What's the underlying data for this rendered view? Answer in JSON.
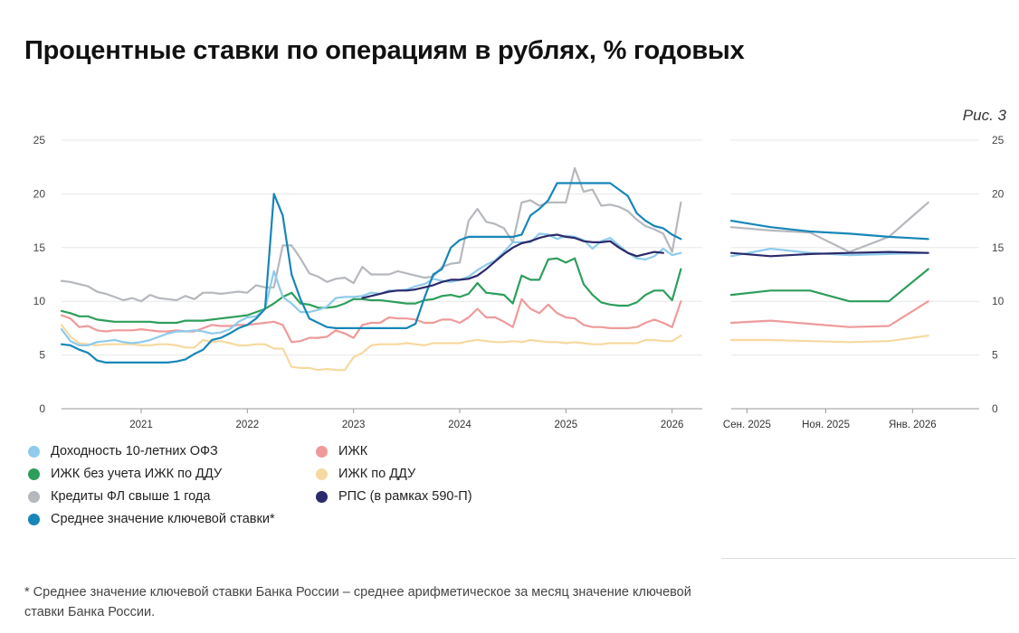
{
  "title": "Процентные ставки по операциям в рублях, % годовых",
  "figure_label": "Рис. 3",
  "footnote": "* Среднее значение ключевой ставки Банка России – среднее арифметическое за месяц значение ключевой ставки Банка России.",
  "legend": [
    {
      "key": "ofz",
      "label": "Доходность 10-летних ОФЗ",
      "color": "#8ecbec"
    },
    {
      "key": "izhk",
      "label": "ИЖК",
      "color": "#ee9a9a"
    },
    {
      "key": "izhk_no_ddu",
      "label": "ИЖК без учета ИЖК по ДДУ",
      "color": "#2e9e5b"
    },
    {
      "key": "izhk_ddu",
      "label": "ИЖК по ДДУ",
      "color": "#f6d9a0"
    },
    {
      "key": "fl_credit",
      "label": "Кредиты ФЛ свыше 1 года",
      "color": "#b5b8bd"
    },
    {
      "key": "rps",
      "label": "РПС (в рамках 590-П)",
      "color": "#2b2a6b"
    },
    {
      "key": "key_rate",
      "label": "Среднее значение ключевой ставки*",
      "color": "#1786b8"
    }
  ],
  "chart_data": [
    {
      "type": "line",
      "title": "Процентные ставки по операциям в рублях, % годовых",
      "x_unit": "months since Jan 2020",
      "xlim": [
        3,
        75
      ],
      "ylim": [
        0,
        25
      ],
      "yticks": [
        "0",
        "5",
        "10",
        "15",
        "20",
        "25"
      ],
      "xticks": [
        {
          "x": 12,
          "label": "2021"
        },
        {
          "x": 24,
          "label": "2022"
        },
        {
          "x": 36,
          "label": "2023"
        },
        {
          "x": 48,
          "label": "2024"
        },
        {
          "x": 60,
          "label": "2025"
        },
        {
          "x": 72,
          "label": "2026"
        }
      ],
      "grid": true,
      "series": [
        {
          "key": "fl_credit",
          "start": 3,
          "values": [
            11.9,
            11.8,
            11.6,
            11.4,
            10.9,
            10.7,
            10.4,
            10.1,
            10.3,
            10.0,
            10.6,
            10.3,
            10.2,
            10.1,
            10.5,
            10.2,
            10.8,
            10.8,
            10.7,
            10.8,
            10.9,
            10.8,
            11.5,
            11.3,
            11.3,
            15.2,
            15.2,
            14.0,
            12.6,
            12.3,
            11.8,
            12.1,
            12.2,
            11.7,
            13.2,
            12.5,
            12.5,
            12.5,
            12.8,
            12.6,
            12.4,
            12.2,
            12.3,
            13.2,
            13.5,
            13.6,
            17.5,
            18.6,
            17.4,
            17.2,
            16.8,
            15.5,
            19.2,
            19.4,
            18.9,
            19.2,
            19.2,
            19.2,
            22.4,
            20.2,
            20.4,
            18.9,
            19.0,
            18.8,
            18.4,
            17.6,
            17.0,
            16.7,
            16.3,
            14.6,
            19.2
          ]
        },
        {
          "key": "ofz",
          "start": 3,
          "values": [
            7.4,
            6.3,
            5.9,
            5.9,
            6.2,
            6.3,
            6.4,
            6.2,
            6.1,
            6.2,
            6.4,
            6.7,
            7.0,
            7.2,
            7.2,
            7.3,
            7.2,
            7.0,
            7.1,
            7.4,
            8.1,
            8.5,
            8.6,
            9.3,
            12.8,
            10.4,
            9.8,
            9.0,
            9.0,
            9.2,
            9.5,
            10.3,
            10.4,
            10.4,
            10.5,
            10.8,
            10.7,
            11.0,
            11.0,
            11.1,
            11.4,
            11.6,
            12.1,
            11.9,
            11.8,
            12.0,
            12.3,
            12.9,
            13.4,
            13.8,
            14.6,
            15.5,
            15.5,
            15.5,
            16.3,
            16.2,
            15.8,
            16.1,
            16.0,
            15.7,
            14.9,
            15.6,
            15.9,
            15.2,
            14.5,
            14.0,
            13.9,
            14.2,
            14.9,
            14.3,
            14.5
          ]
        },
        {
          "key": "key_rate",
          "start": 3,
          "values": [
            6.0,
            5.9,
            5.5,
            5.2,
            4.5,
            4.3,
            4.3,
            4.3,
            4.3,
            4.3,
            4.3,
            4.3,
            4.3,
            4.4,
            4.6,
            5.1,
            5.5,
            6.4,
            6.6,
            7.0,
            7.5,
            7.8,
            8.4,
            9.3,
            20.0,
            18.0,
            12.5,
            10.2,
            8.4,
            8.0,
            7.6,
            7.5,
            7.5,
            7.5,
            7.5,
            7.5,
            7.5,
            7.5,
            7.5,
            7.5,
            7.9,
            10.3,
            12.5,
            13.0,
            15.0,
            15.7,
            16.0,
            16.0,
            16.0,
            16.0,
            16.0,
            16.0,
            16.2,
            18.0,
            18.6,
            19.4,
            21.0,
            21.0,
            21.0,
            21.0,
            21.0,
            21.0,
            21.0,
            20.4,
            19.8,
            18.2,
            17.5,
            17.0,
            16.8,
            16.2,
            15.8
          ]
        },
        {
          "key": "izhk_no_ddu",
          "start": 3,
          "values": [
            9.1,
            8.9,
            8.6,
            8.6,
            8.3,
            8.2,
            8.1,
            8.1,
            8.1,
            8.1,
            8.1,
            8.0,
            8.0,
            8.0,
            8.2,
            8.2,
            8.2,
            8.3,
            8.4,
            8.5,
            8.6,
            8.7,
            9.0,
            9.3,
            9.8,
            10.4,
            10.8,
            9.8,
            9.7,
            9.4,
            9.4,
            9.5,
            9.8,
            10.2,
            10.2,
            10.1,
            10.1,
            10.0,
            9.9,
            9.8,
            9.8,
            10.1,
            10.2,
            10.5,
            10.6,
            10.4,
            10.7,
            11.7,
            10.8,
            10.7,
            10.6,
            9.8,
            12.4,
            12.0,
            12.0,
            13.9,
            14.0,
            13.6,
            14.0,
            11.6,
            10.6,
            9.9,
            9.7,
            9.6,
            9.6,
            9.9,
            10.6,
            11.0,
            11.0,
            10.1,
            13.0
          ]
        },
        {
          "key": "izhk",
          "start": 3,
          "values": [
            8.7,
            8.4,
            7.6,
            7.7,
            7.3,
            7.2,
            7.3,
            7.3,
            7.3,
            7.4,
            7.3,
            7.2,
            7.2,
            7.3,
            7.2,
            7.2,
            7.5,
            7.8,
            7.7,
            7.7,
            7.8,
            7.8,
            7.9,
            8.0,
            8.1,
            7.8,
            6.2,
            6.3,
            6.6,
            6.6,
            6.7,
            7.3,
            7.0,
            6.6,
            7.8,
            8.0,
            8.0,
            8.5,
            8.4,
            8.4,
            8.3,
            8.0,
            8.0,
            8.3,
            8.3,
            8.0,
            8.5,
            9.3,
            8.5,
            8.5,
            8.1,
            7.6,
            10.2,
            9.3,
            8.9,
            9.7,
            8.9,
            8.5,
            8.4,
            7.8,
            7.6,
            7.6,
            7.5,
            7.5,
            7.5,
            7.6,
            8.0,
            8.3,
            8.0,
            7.6,
            10.0
          ]
        },
        {
          "key": "izhk_ddu",
          "start": 3,
          "values": [
            7.8,
            6.7,
            6.1,
            6.0,
            5.9,
            6.0,
            6.0,
            6.0,
            6.0,
            5.9,
            5.9,
            6.0,
            6.0,
            5.9,
            5.7,
            5.7,
            6.4,
            6.2,
            6.3,
            6.1,
            5.9,
            5.9,
            6.0,
            6.0,
            5.6,
            5.6,
            3.9,
            3.8,
            3.8,
            3.6,
            3.7,
            3.6,
            3.6,
            4.8,
            5.2,
            5.9,
            6.0,
            6.0,
            6.0,
            6.1,
            6.0,
            5.9,
            6.1,
            6.1,
            6.1,
            6.1,
            6.3,
            6.4,
            6.3,
            6.2,
            6.2,
            6.3,
            6.2,
            6.4,
            6.3,
            6.2,
            6.2,
            6.1,
            6.2,
            6.1,
            6.0,
            6.0,
            6.1,
            6.1,
            6.1,
            6.1,
            6.4,
            6.4,
            6.3,
            6.3,
            6.8
          ]
        },
        {
          "key": "rps",
          "start": 37,
          "values": [
            10.3,
            10.5,
            10.7,
            10.9,
            11.0,
            11.0,
            11.1,
            11.3,
            11.5,
            11.8,
            12.0,
            12.0,
            12.1,
            12.4,
            13.0,
            13.7,
            14.4,
            15.0,
            15.4,
            15.6,
            15.9,
            16.1,
            16.2,
            16.0,
            15.9,
            15.6,
            15.5,
            15.5,
            15.6,
            15.0,
            14.5,
            14.2,
            14.4,
            14.6,
            14.5
          ]
        }
      ]
    },
    {
      "type": "line",
      "title": "Процентные ставки по операциям в рублях, % годовых",
      "x_unit": "months since Sep 2025",
      "xlim": [
        0,
        6.2
      ],
      "ylim": [
        0,
        25
      ],
      "yticks": [
        "0",
        "5",
        "10",
        "15",
        "20",
        "25"
      ],
      "xticks": [
        {
          "x": 0.4,
          "label": "Сен. 2025"
        },
        {
          "x": 2.4,
          "label": "Ноя. 2025"
        },
        {
          "x": 4.6,
          "label": "Янв. 2026"
        }
      ],
      "grid": true,
      "series": [
        {
          "key": "fl_credit",
          "start": 0,
          "values": [
            16.9,
            16.6,
            16.4,
            14.6,
            16.0,
            19.2
          ]
        },
        {
          "key": "key_rate",
          "start": 0,
          "values": [
            17.5,
            16.9,
            16.5,
            16.3,
            16.0,
            15.8
          ]
        },
        {
          "key": "ofz",
          "start": 0,
          "values": [
            14.2,
            14.9,
            14.5,
            14.3,
            14.4,
            14.5
          ]
        },
        {
          "key": "rps",
          "start": 0,
          "values": [
            14.5,
            14.2,
            14.4,
            14.5,
            14.6,
            14.5
          ]
        },
        {
          "key": "izhk_no_ddu",
          "start": 0,
          "values": [
            10.6,
            11.0,
            11.0,
            10.0,
            10.0,
            13.0
          ]
        },
        {
          "key": "izhk",
          "start": 0,
          "values": [
            8.0,
            8.2,
            7.9,
            7.6,
            7.7,
            10.0
          ]
        },
        {
          "key": "izhk_ddu",
          "start": 0,
          "values": [
            6.4,
            6.4,
            6.3,
            6.2,
            6.3,
            6.8
          ]
        }
      ]
    }
  ]
}
